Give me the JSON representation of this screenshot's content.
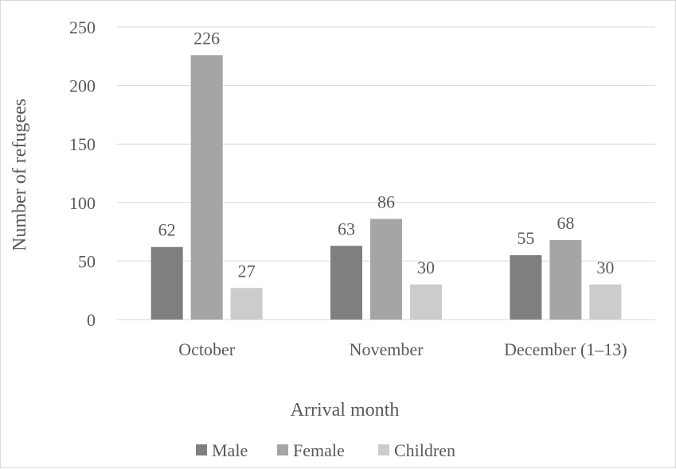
{
  "chart_data": {
    "type": "bar",
    "categories": [
      "October",
      "November",
      "December (1–13)"
    ],
    "series": [
      {
        "name": "Male",
        "values": [
          62,
          63,
          55
        ],
        "color": "#7f7f7f"
      },
      {
        "name": "Female",
        "values": [
          226,
          86,
          68
        ],
        "color": "#a5a5a5"
      },
      {
        "name": "Children",
        "values": [
          27,
          30,
          30
        ],
        "color": "#cccccc"
      }
    ],
    "xlabel": "Arrival month",
    "ylabel": "Number of refugees",
    "ylim": [
      0,
      250
    ],
    "yticks": [
      "0",
      "50",
      "100",
      "150",
      "200",
      "250"
    ],
    "grid": true,
    "legend": "bottom"
  }
}
